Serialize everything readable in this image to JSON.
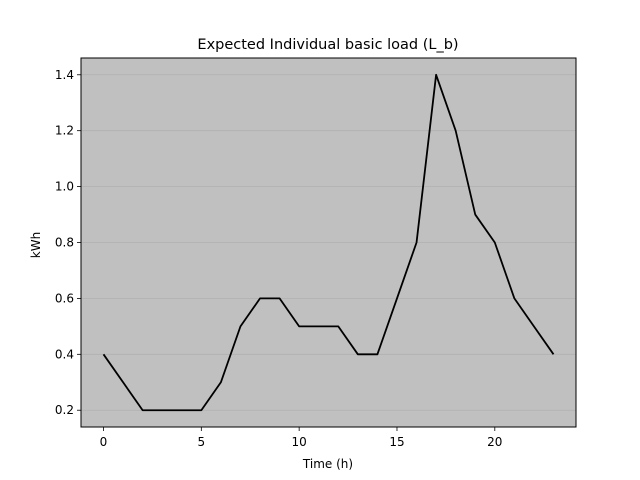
{
  "chart_data": {
    "type": "line",
    "title": "Expected Individual basic load (L_b)",
    "xlabel": "Time (h)",
    "ylabel": "kWh",
    "xlim": [
      -1.15,
      24.15
    ],
    "ylim": [
      0.14,
      1.46
    ],
    "xticks": [
      0,
      5,
      10,
      15,
      20
    ],
    "yticks": [
      0.2,
      0.4,
      0.6,
      0.8,
      1.0,
      1.2,
      1.4
    ],
    "ytick_labels": [
      "0.2",
      "0.4",
      "0.6",
      "0.8",
      "1.0",
      "1.2",
      "1.4"
    ],
    "grid": "y",
    "series": [
      {
        "x": [
          0,
          1,
          2,
          3,
          4,
          5,
          6,
          7,
          8,
          9,
          10,
          11,
          12,
          13,
          14,
          15,
          16,
          17,
          18,
          19,
          20,
          21,
          22,
          23
        ],
        "values": [
          0.4,
          0.3,
          0.2,
          0.2,
          0.2,
          0.2,
          0.3,
          0.5,
          0.6,
          0.6,
          0.5,
          0.5,
          0.5,
          0.4,
          0.4,
          0.6,
          0.8,
          1.4,
          1.2,
          0.9,
          0.8,
          0.6,
          0.5,
          0.4
        ],
        "color": "#000000"
      }
    ],
    "colors": {
      "plot_background": "#c0c0c0",
      "grid": "#b0b0b0",
      "line": "#000000"
    }
  }
}
